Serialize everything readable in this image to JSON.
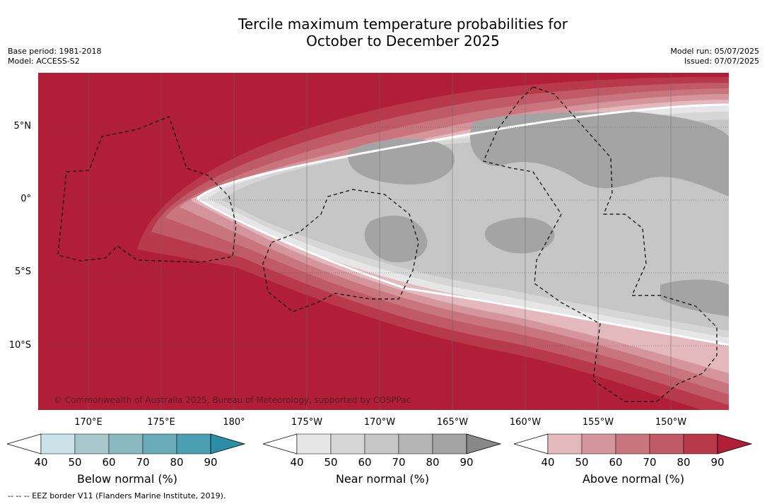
{
  "title_line1": "Tercile maximum temperature probabilities for",
  "title_line2": "October to December 2025",
  "base_period": "Base period: 1981-2018",
  "model": "Model: ACCESS-S2",
  "model_run": "Model run: 05/07/2025",
  "issued": "Issued: 07/07/2025",
  "copyright": "© Commonwealth of Australia 2025, Bureau of Meteorology, supported by COSPPac",
  "lat_labels": [
    "5°N",
    "0°",
    "5°S",
    "10°S"
  ],
  "lon_labels": [
    "170°E",
    "175°E",
    "180°",
    "175°W",
    "170°W",
    "165°W",
    "160°W",
    "155°W",
    "150°W"
  ],
  "colorbars": [
    {
      "title": "Below normal (%)",
      "ticks": [
        "40",
        "50",
        "60",
        "70",
        "80",
        "90"
      ],
      "colors": [
        "#ffffff",
        "#c9e1e7",
        "#a8c8cd",
        "#89b8c1",
        "#6aabb9",
        "#4a9fb0",
        "#2b8ea5"
      ]
    },
    {
      "title": "Near normal (%)",
      "ticks": [
        "40",
        "50",
        "60",
        "70",
        "80",
        "90"
      ],
      "colors": [
        "#ffffff",
        "#e6e6e6",
        "#d6d6d6",
        "#c6c6c6",
        "#b4b4b4",
        "#a4a4a4",
        "#888888"
      ]
    },
    {
      "title": "Above normal (%)",
      "ticks": [
        "40",
        "50",
        "60",
        "70",
        "80",
        "90"
      ],
      "colors": [
        "#ffffff",
        "#e3b9be",
        "#d4959c",
        "#c8757e",
        "#c05a66",
        "#b8394a",
        "#b01e38"
      ]
    }
  ],
  "footnote": "--  --  -- EEZ border V11 (Flanders Marine Institute, 2019)."
}
